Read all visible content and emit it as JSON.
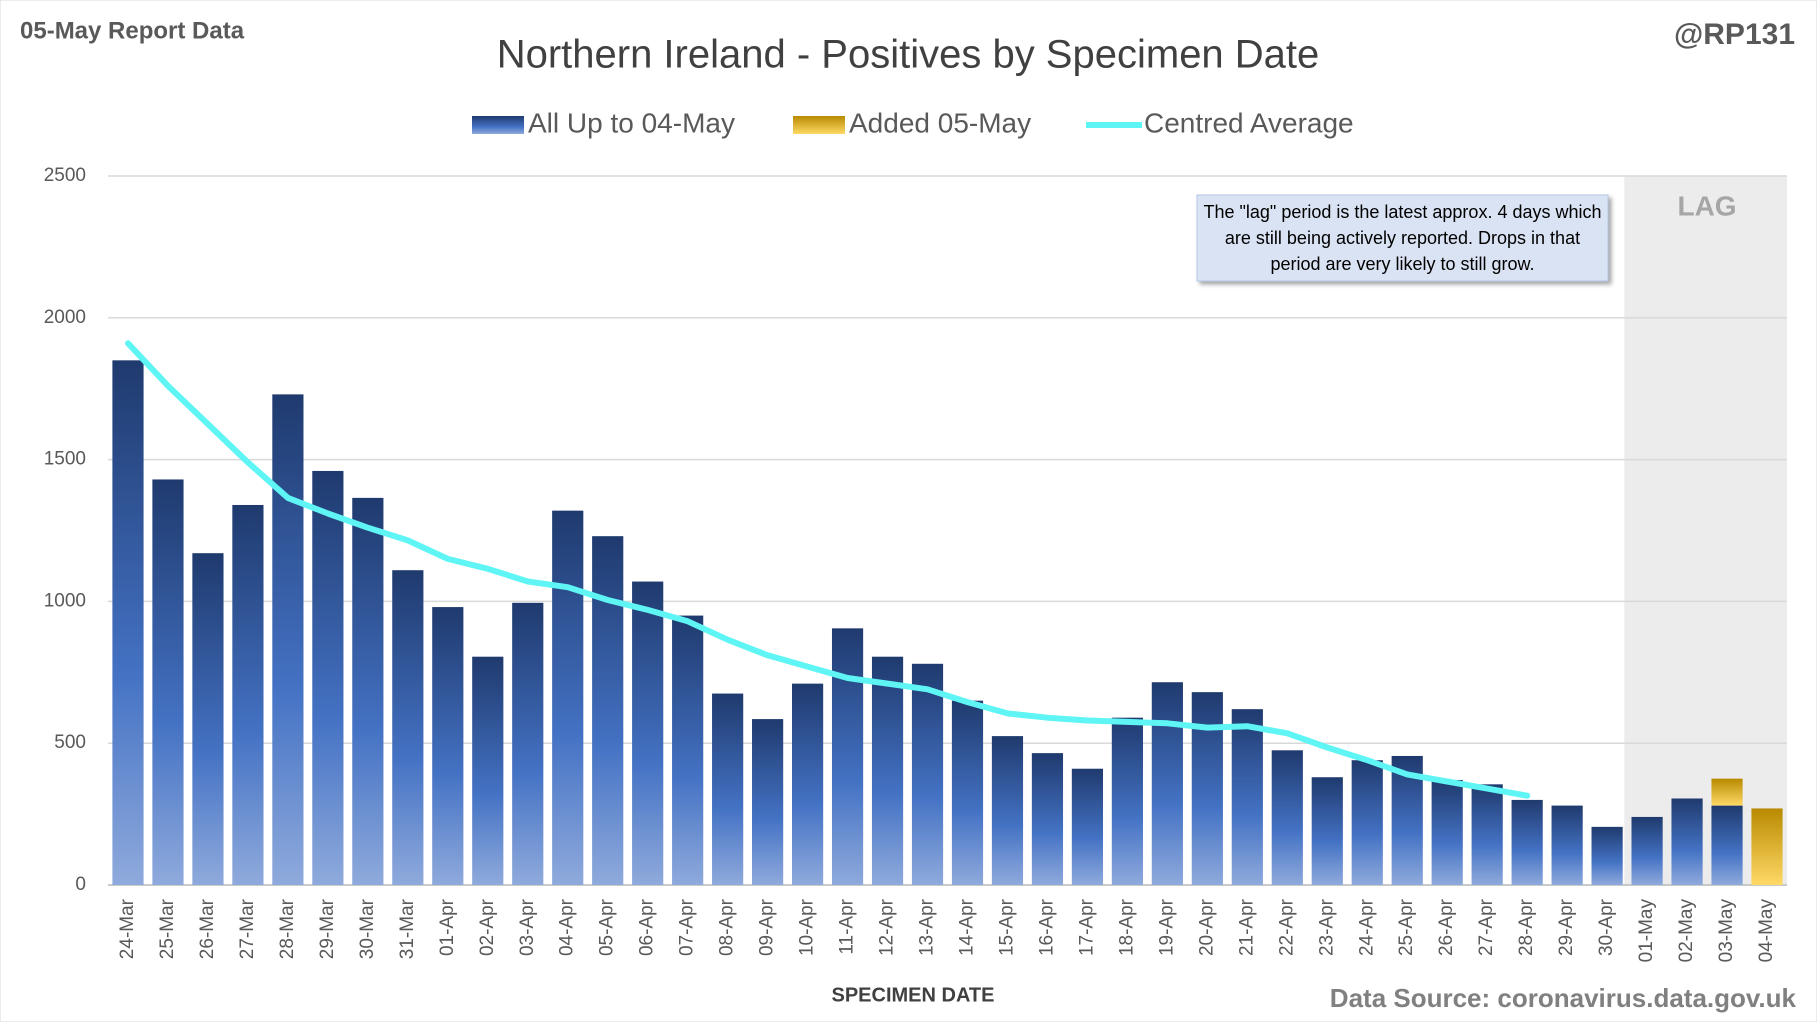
{
  "chart_data": {
    "type": "bar",
    "title": "Northern Ireland - Positives by Specimen Date",
    "report_label": "05-May Report Data",
    "author": "@RP131",
    "x_label": "SPECIMEN DATE",
    "source": "Data Source: coronavirus.data.gov.uk",
    "annotation": "The \"lag\" period is the latest approx. 4 days which are still being actively reported. Drops in that period are very likely to still grow.",
    "shaded_region": {
      "label": "LAG",
      "from": "01-May",
      "to": "04-May"
    },
    "stacked": true,
    "categories": [
      "24-Mar",
      "25-Mar",
      "26-Mar",
      "27-Mar",
      "28-Mar",
      "29-Mar",
      "30-Mar",
      "31-Mar",
      "01-Apr",
      "02-Apr",
      "03-Apr",
      "04-Apr",
      "05-Apr",
      "06-Apr",
      "07-Apr",
      "08-Apr",
      "09-Apr",
      "10-Apr",
      "11-Apr",
      "12-Apr",
      "13-Apr",
      "14-Apr",
      "15-Apr",
      "16-Apr",
      "17-Apr",
      "18-Apr",
      "19-Apr",
      "20-Apr",
      "21-Apr",
      "22-Apr",
      "23-Apr",
      "24-Apr",
      "25-Apr",
      "26-Apr",
      "27-Apr",
      "28-Apr",
      "29-Apr",
      "30-Apr",
      "01-May",
      "02-May",
      "03-May",
      "04-May"
    ],
    "series": [
      {
        "name": "All Up to 04-May",
        "kind": "bar",
        "color": "#2f5597",
        "values": [
          1850,
          1430,
          1170,
          1340,
          1730,
          1460,
          1365,
          1110,
          980,
          805,
          995,
          1320,
          1230,
          1070,
          950,
          675,
          585,
          710,
          905,
          805,
          780,
          650,
          525,
          465,
          410,
          590,
          715,
          680,
          620,
          475,
          380,
          440,
          455,
          370,
          355,
          300,
          280,
          205,
          240,
          305,
          280,
          0
        ]
      },
      {
        "name": "Added 05-May",
        "kind": "bar",
        "color": "#d4a000",
        "values": [
          0,
          0,
          0,
          0,
          0,
          0,
          0,
          0,
          0,
          0,
          0,
          0,
          0,
          0,
          0,
          0,
          0,
          0,
          0,
          0,
          0,
          0,
          0,
          0,
          0,
          0,
          0,
          0,
          0,
          0,
          0,
          0,
          0,
          0,
          0,
          0,
          0,
          0,
          0,
          0,
          95,
          270
        ]
      },
      {
        "name": "Centred Average",
        "kind": "line",
        "color": "#5ff5f5",
        "values": [
          1910,
          1760,
          1625,
          1490,
          1365,
          1310,
          1260,
          1215,
          1150,
          1115,
          1070,
          1050,
          1005,
          970,
          930,
          865,
          810,
          770,
          730,
          710,
          690,
          645,
          605,
          590,
          580,
          575,
          570,
          555,
          560,
          535,
          485,
          440,
          390,
          365,
          340,
          315,
          null,
          null,
          null,
          null,
          null,
          null
        ]
      }
    ],
    "ylim": [
      0,
      2500
    ],
    "yticks": [
      0,
      500,
      1000,
      1500,
      2000,
      2500
    ],
    "grid": true
  }
}
